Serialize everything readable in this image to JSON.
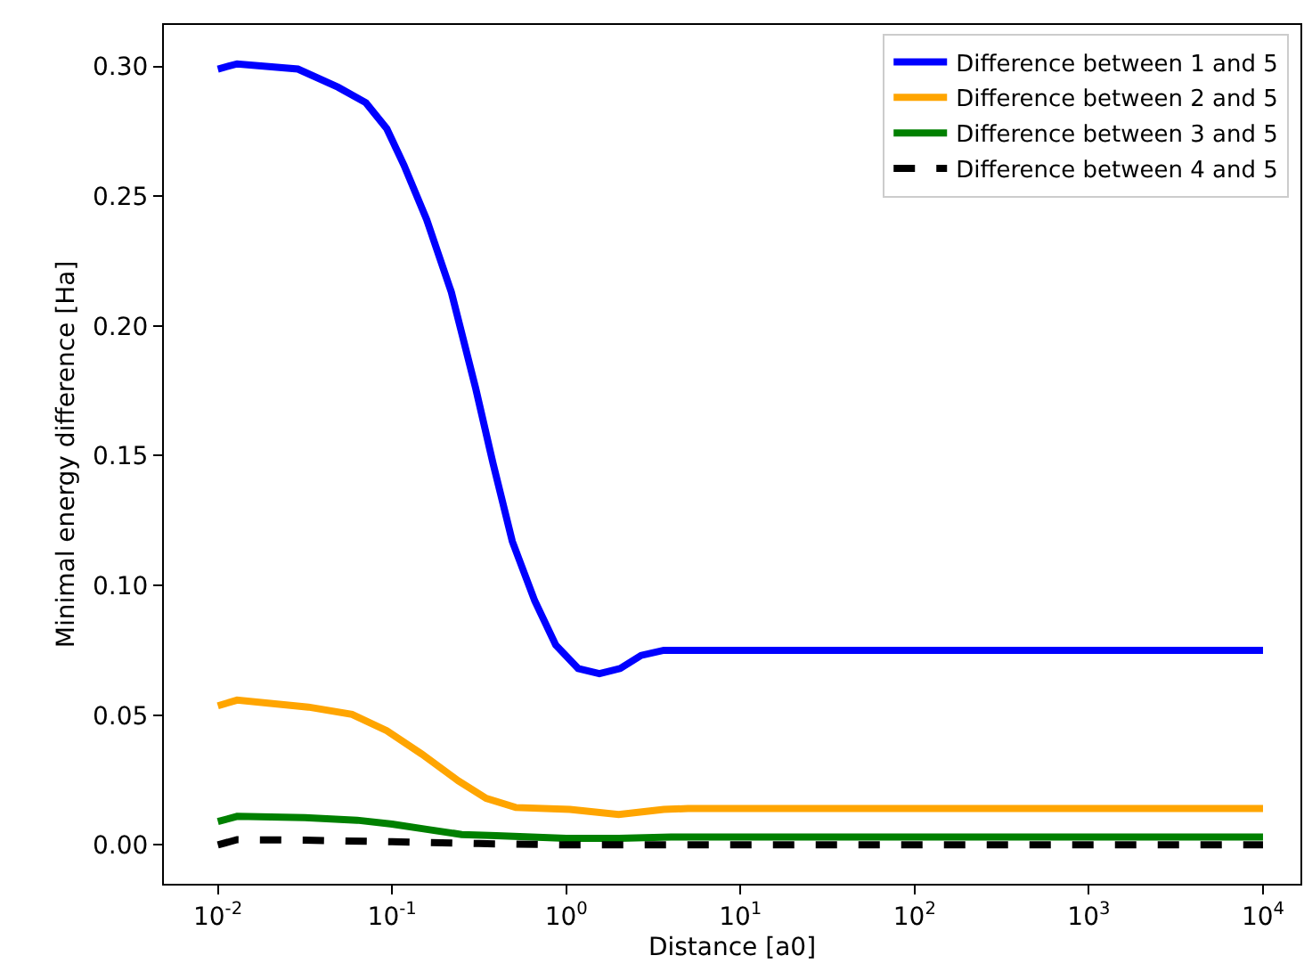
{
  "chart_data": {
    "type": "line",
    "xlabel": "Distance [a0]",
    "ylabel": "Minimal energy difference [Ha]",
    "log": "x",
    "xlim": [
      0.0049,
      16400
    ],
    "ylim": [
      -0.015,
      0.316
    ],
    "xticks": [
      {
        "value": 0.01,
        "label": "10$^{-2}$"
      },
      {
        "value": 0.1,
        "label": "10$^{-1}$"
      },
      {
        "value": 1,
        "label": "10$^{0}$"
      },
      {
        "value": 10,
        "label": "10$^{1}$"
      },
      {
        "value": 100,
        "label": "10$^{2}$"
      },
      {
        "value": 1000,
        "label": "10$^{3}$"
      },
      {
        "value": 10000,
        "label": "10$^{4}$"
      }
    ],
    "yticks": [
      {
        "value": 0,
        "label": "0.00"
      },
      {
        "value": 0.05,
        "label": "0.05"
      },
      {
        "value": 0.1,
        "label": "0.10"
      },
      {
        "value": 0.15,
        "label": "0.15"
      },
      {
        "value": 0.2,
        "label": "0.20"
      },
      {
        "value": 0.25,
        "label": "0.25"
      },
      {
        "value": 0.3,
        "label": "0.30"
      }
    ],
    "legend": "top right",
    "marker": "none",
    "series": [
      {
        "name": "Difference between 1 and 5",
        "color": "#0000ff",
        "line_style": "solid",
        "x": [
          0.01,
          0.0129,
          0.0288,
          0.049,
          0.0708,
          0.0933,
          0.117,
          0.158,
          0.219,
          0.302,
          0.38,
          0.49,
          0.66,
          0.87,
          1.17,
          1.55,
          2.04,
          2.69,
          3.63,
          5,
          10,
          100,
          1000,
          10000
        ],
        "values": [
          0.299,
          0.301,
          0.299,
          0.292,
          0.286,
          0.276,
          0.262,
          0.241,
          0.213,
          0.176,
          0.147,
          0.117,
          0.094,
          0.077,
          0.068,
          0.066,
          0.068,
          0.073,
          0.075,
          0.075,
          0.075,
          0.075,
          0.075,
          0.075
        ]
      },
      {
        "name": "Difference between 2 and 5",
        "color": "#ffa500",
        "line_style": "solid",
        "x": [
          0.01,
          0.0129,
          0.0331,
          0.0589,
          0.0933,
          0.148,
          0.24,
          0.347,
          0.513,
          1.05,
          2.0,
          3.63,
          5,
          10,
          100,
          1000,
          10000
        ],
        "values": [
          0.0536,
          0.0558,
          0.0531,
          0.0503,
          0.044,
          0.035,
          0.0247,
          0.0179,
          0.0144,
          0.0137,
          0.0117,
          0.0137,
          0.014,
          0.014,
          0.014,
          0.014,
          0.014
        ]
      },
      {
        "name": "Difference between 3 and 5",
        "color": "#008000",
        "line_style": "solid",
        "x": [
          0.01,
          0.0129,
          0.0316,
          0.0631,
          0.1,
          0.158,
          0.251,
          0.398,
          0.631,
          1,
          2,
          4,
          10,
          100,
          1000,
          10000
        ],
        "values": [
          0.009,
          0.011,
          0.0105,
          0.0095,
          0.008,
          0.006,
          0.004,
          0.0035,
          0.003,
          0.0025,
          0.0025,
          0.003,
          0.003,
          0.003,
          0.003,
          0.003
        ]
      },
      {
        "name": "Difference between 4 and 5",
        "color": "#000000",
        "line_style": "dashed",
        "x": [
          0.01,
          0.0129,
          0.0316,
          0.1,
          0.316,
          1,
          10,
          100,
          1000,
          10000
        ],
        "values": [
          0.0,
          0.002,
          0.0018,
          0.0012,
          0.0005,
          0.0,
          0.0,
          0.0,
          0.0,
          0.0
        ]
      }
    ]
  }
}
